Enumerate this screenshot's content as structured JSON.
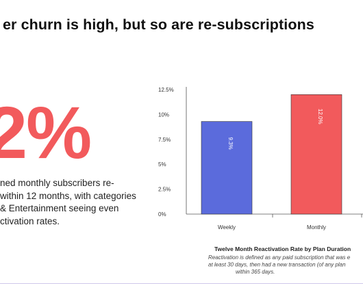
{
  "headline": "er churn is high, but so are re-subscriptions",
  "big_stat": "2%",
  "body_lines": [
    "ned monthly subscribers re-",
    "within 12 months, with categories",
    "& Entertainment seeing even",
    "ctivation rates."
  ],
  "chart_data": {
    "type": "bar",
    "categories": [
      "Weekly",
      "Monthly"
    ],
    "values": [
      9.3,
      12.0
    ],
    "value_labels": [
      "9.3%",
      "12.0%"
    ],
    "colors": [
      "#5b6bdc",
      "#f25a5c"
    ],
    "y_ticks": [
      "0%",
      "2.5%",
      "5%",
      "7.5%",
      "10%",
      "12.5%"
    ],
    "ylim": [
      0,
      12.5
    ],
    "title": "Twelve Month Reactivation Rate by Plan Duration",
    "caption_lines": [
      "Reactivation is defined as any paid subscription that was e",
      "at least 30 days, then had a new transaction (of any plan",
      "within 365 days."
    ],
    "grid": false
  }
}
